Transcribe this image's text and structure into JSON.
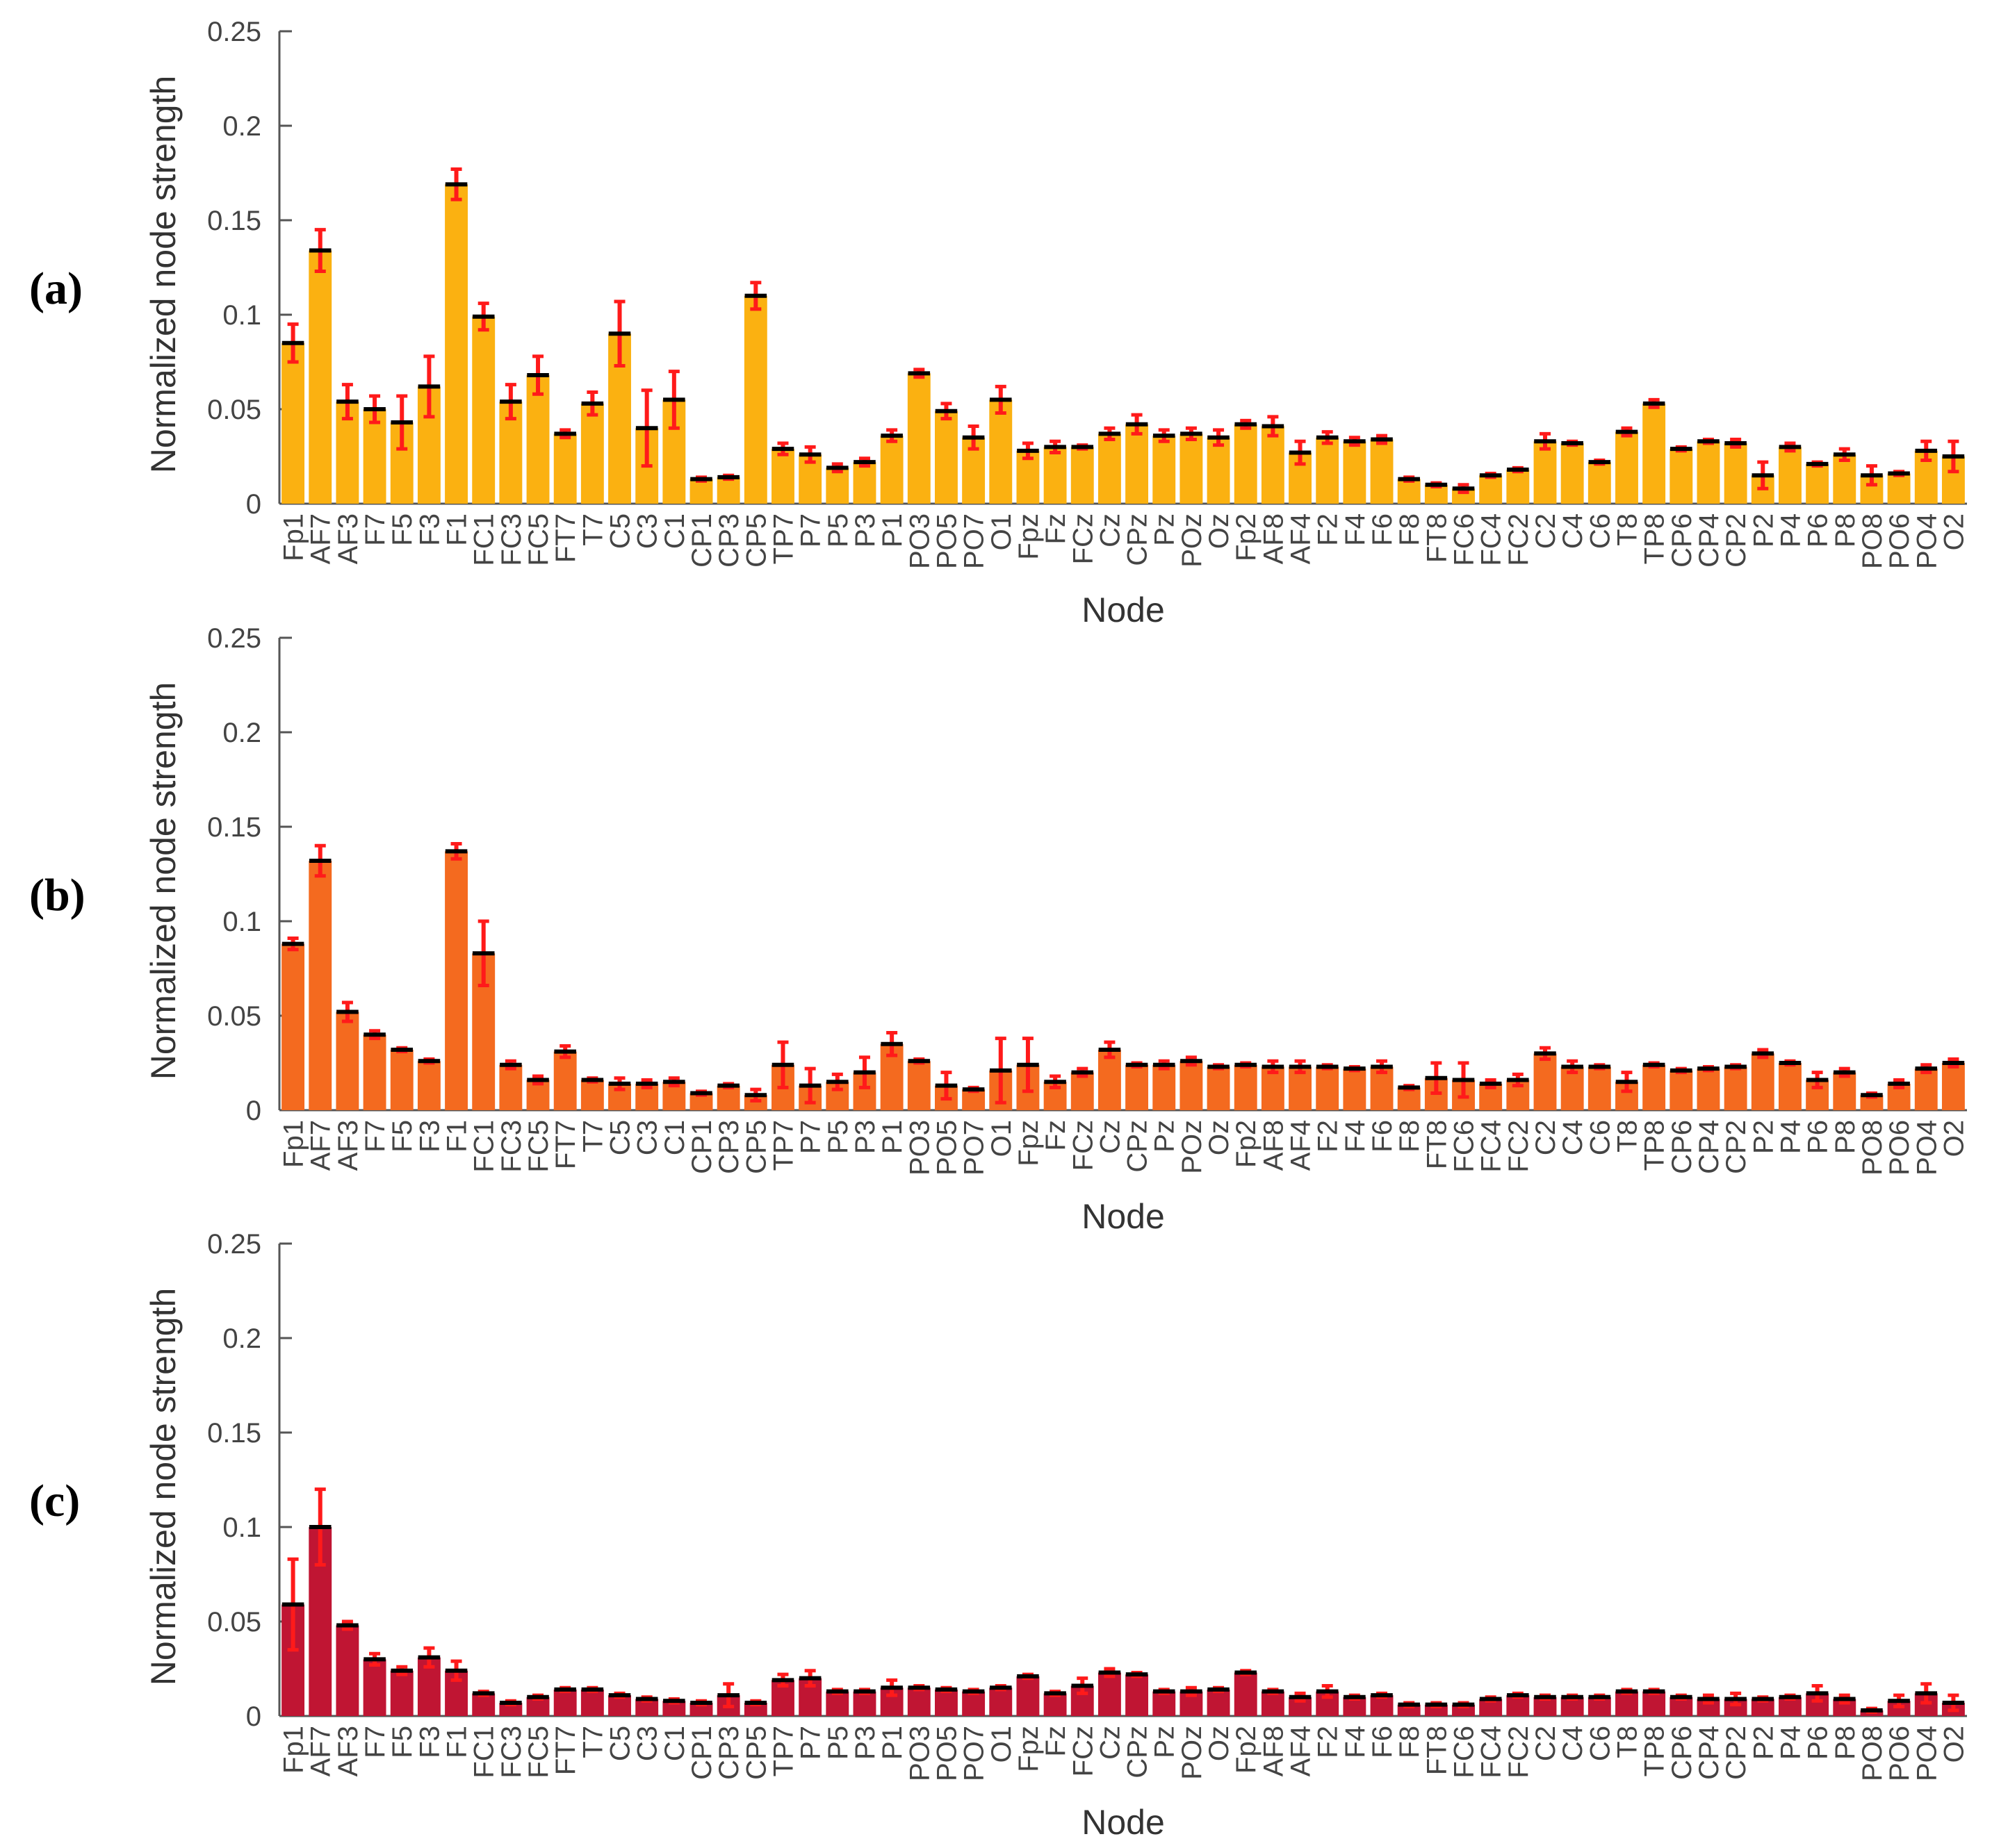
{
  "colors": {
    "panel_a": "#fbb111",
    "panel_b": "#f46a1f",
    "panel_c": "#c01533",
    "error_bar": "#ff1a1a",
    "mean_line": "#000000",
    "axis": "#555555"
  },
  "chart_data": [
    {
      "type": "bar",
      "panel_label": "(a)",
      "xlabel": "Node",
      "ylabel": "Normalized node strength",
      "ylim": [
        0,
        0.25
      ],
      "yticks": [
        0,
        0.05,
        0.1,
        0.15,
        0.2,
        0.25
      ],
      "ytick_labels": [
        "0",
        "0.05",
        "0.1",
        "0.15",
        "0.2",
        "0.25"
      ],
      "grid": false,
      "categories": [
        "Fp1",
        "AF7",
        "AF3",
        "F7",
        "F5",
        "F3",
        "F1",
        "FC1",
        "FC3",
        "FC5",
        "FT7",
        "T7",
        "C5",
        "C3",
        "C1",
        "CP1",
        "CP3",
        "CP5",
        "TP7",
        "P7",
        "P5",
        "P3",
        "P1",
        "PO3",
        "PO5",
        "PO7",
        "O1",
        "Fpz",
        "Fz",
        "FCz",
        "Cz",
        "CPz",
        "Pz",
        "POz",
        "Oz",
        "Fp2",
        "AF8",
        "AF4",
        "F2",
        "F4",
        "F6",
        "F8",
        "FT8",
        "FC6",
        "FC4",
        "FC2",
        "C2",
        "C4",
        "C6",
        "T8",
        "TP8",
        "CP6",
        "CP4",
        "CP2",
        "P2",
        "P4",
        "P6",
        "P8",
        "PO8",
        "PO6",
        "PO4",
        "O2"
      ],
      "values": [
        0.085,
        0.134,
        0.054,
        0.05,
        0.043,
        0.062,
        0.169,
        0.099,
        0.054,
        0.068,
        0.037,
        0.053,
        0.09,
        0.04,
        0.055,
        0.013,
        0.014,
        0.11,
        0.029,
        0.026,
        0.019,
        0.022,
        0.036,
        0.069,
        0.049,
        0.035,
        0.055,
        0.028,
        0.03,
        0.03,
        0.037,
        0.042,
        0.036,
        0.037,
        0.035,
        0.042,
        0.041,
        0.027,
        0.035,
        0.033,
        0.034,
        0.013,
        0.01,
        0.008,
        0.015,
        0.018,
        0.033,
        0.032,
        0.022,
        0.038,
        0.053,
        0.029,
        0.033,
        0.032,
        0.015,
        0.03,
        0.021,
        0.026,
        0.015,
        0.016,
        0.028,
        0.025
      ],
      "errors": [
        0.01,
        0.011,
        0.009,
        0.007,
        0.014,
        0.016,
        0.008,
        0.007,
        0.009,
        0.01,
        0.002,
        0.006,
        0.017,
        0.02,
        0.015,
        0.001,
        0.001,
        0.007,
        0.003,
        0.004,
        0.002,
        0.002,
        0.003,
        0.002,
        0.004,
        0.006,
        0.007,
        0.004,
        0.003,
        0.001,
        0.003,
        0.005,
        0.003,
        0.003,
        0.004,
        0.002,
        0.005,
        0.006,
        0.003,
        0.002,
        0.002,
        0.001,
        0.001,
        0.002,
        0.001,
        0.001,
        0.004,
        0.001,
        0.001,
        0.002,
        0.002,
        0.001,
        0.001,
        0.002,
        0.007,
        0.002,
        0.001,
        0.003,
        0.005,
        0.001,
        0.005,
        0.008
      ]
    },
    {
      "type": "bar",
      "panel_label": "(b)",
      "xlabel": "Node",
      "ylabel": "Normalized node strength",
      "ylim": [
        0,
        0.25
      ],
      "yticks": [
        0,
        0.05,
        0.1,
        0.15,
        0.2,
        0.25
      ],
      "ytick_labels": [
        "0",
        "0.05",
        "0.1",
        "0.15",
        "0.2",
        "0.25"
      ],
      "grid": false,
      "categories": [
        "Fp1",
        "AF7",
        "AF3",
        "F7",
        "F5",
        "F3",
        "F1",
        "FC1",
        "FC3",
        "FC5",
        "FT7",
        "T7",
        "C5",
        "C3",
        "C1",
        "CP1",
        "CP3",
        "CP5",
        "TP7",
        "P7",
        "P5",
        "P3",
        "P1",
        "PO3",
        "PO5",
        "PO7",
        "O1",
        "Fpz",
        "Fz",
        "FCz",
        "Cz",
        "CPz",
        "Pz",
        "POz",
        "Oz",
        "Fp2",
        "AF8",
        "AF4",
        "F2",
        "F4",
        "F6",
        "F8",
        "FT8",
        "FC6",
        "FC4",
        "FC2",
        "C2",
        "C4",
        "C6",
        "T8",
        "TP8",
        "CP6",
        "CP4",
        "CP2",
        "P2",
        "P4",
        "P6",
        "P8",
        "PO8",
        "PO6",
        "PO4",
        "O2"
      ],
      "values": [
        0.088,
        0.132,
        0.052,
        0.04,
        0.032,
        0.026,
        0.137,
        0.083,
        0.024,
        0.016,
        0.031,
        0.016,
        0.014,
        0.014,
        0.015,
        0.009,
        0.013,
        0.008,
        0.024,
        0.013,
        0.015,
        0.02,
        0.035,
        0.026,
        0.013,
        0.011,
        0.021,
        0.024,
        0.015,
        0.02,
        0.032,
        0.024,
        0.024,
        0.026,
        0.023,
        0.024,
        0.023,
        0.023,
        0.023,
        0.022,
        0.023,
        0.012,
        0.017,
        0.016,
        0.014,
        0.016,
        0.03,
        0.023,
        0.023,
        0.015,
        0.024,
        0.021,
        0.022,
        0.023,
        0.03,
        0.025,
        0.016,
        0.02,
        0.008,
        0.014,
        0.022,
        0.025
      ],
      "errors": [
        0.003,
        0.008,
        0.005,
        0.002,
        0.001,
        0.001,
        0.004,
        0.017,
        0.002,
        0.002,
        0.003,
        0.001,
        0.003,
        0.002,
        0.002,
        0.001,
        0.001,
        0.003,
        0.012,
        0.009,
        0.004,
        0.008,
        0.006,
        0.001,
        0.007,
        0.001,
        0.017,
        0.014,
        0.003,
        0.002,
        0.004,
        0.001,
        0.002,
        0.002,
        0.001,
        0.001,
        0.003,
        0.003,
        0.001,
        0.001,
        0.003,
        0.001,
        0.008,
        0.009,
        0.002,
        0.003,
        0.003,
        0.003,
        0.001,
        0.005,
        0.001,
        0.001,
        0.001,
        0.001,
        0.002,
        0.001,
        0.004,
        0.002,
        0.001,
        0.002,
        0.002,
        0.002
      ]
    },
    {
      "type": "bar",
      "panel_label": "(c)",
      "xlabel": "Node",
      "ylabel": "Normalized node strength",
      "ylim": [
        0,
        0.25
      ],
      "yticks": [
        0,
        0.05,
        0.1,
        0.15,
        0.2,
        0.25
      ],
      "ytick_labels": [
        "0",
        "0.05",
        "0.1",
        "0.15",
        "0.2",
        "0.25"
      ],
      "grid": false,
      "categories": [
        "Fp1",
        "AF7",
        "AF3",
        "F7",
        "F5",
        "F3",
        "F1",
        "FC1",
        "FC3",
        "FC5",
        "FT7",
        "T7",
        "C5",
        "C3",
        "C1",
        "CP1",
        "CP3",
        "CP5",
        "TP7",
        "P7",
        "P5",
        "P3",
        "P1",
        "PO3",
        "PO5",
        "PO7",
        "O1",
        "Fpz",
        "Fz",
        "FCz",
        "Cz",
        "CPz",
        "Pz",
        "POz",
        "Oz",
        "Fp2",
        "AF8",
        "AF4",
        "F2",
        "F4",
        "F6",
        "F8",
        "FT8",
        "FC6",
        "FC4",
        "FC2",
        "C2",
        "C4",
        "C6",
        "T8",
        "TP8",
        "CP6",
        "CP4",
        "CP2",
        "P2",
        "P4",
        "P6",
        "P8",
        "PO8",
        "PO6",
        "PO4",
        "O2"
      ],
      "values": [
        0.059,
        0.1,
        0.048,
        0.03,
        0.024,
        0.031,
        0.024,
        0.012,
        0.007,
        0.01,
        0.014,
        0.014,
        0.011,
        0.009,
        0.008,
        0.007,
        0.011,
        0.007,
        0.019,
        0.02,
        0.013,
        0.013,
        0.015,
        0.015,
        0.014,
        0.013,
        0.015,
        0.021,
        0.012,
        0.016,
        0.023,
        0.022,
        0.013,
        0.013,
        0.014,
        0.023,
        0.013,
        0.01,
        0.013,
        0.01,
        0.011,
        0.006,
        0.006,
        0.006,
        0.009,
        0.011,
        0.01,
        0.01,
        0.01,
        0.013,
        0.013,
        0.01,
        0.009,
        0.009,
        0.009,
        0.01,
        0.012,
        0.009,
        0.003,
        0.008,
        0.012,
        0.007
      ],
      "errors": [
        0.024,
        0.02,
        0.002,
        0.003,
        0.002,
        0.005,
        0.005,
        0.001,
        0.001,
        0.001,
        0.001,
        0.001,
        0.001,
        0.001,
        0.001,
        0.001,
        0.006,
        0.001,
        0.003,
        0.004,
        0.001,
        0.001,
        0.004,
        0.001,
        0.001,
        0.001,
        0.001,
        0.001,
        0.001,
        0.004,
        0.002,
        0.001,
        0.001,
        0.002,
        0.001,
        0.001,
        0.001,
        0.002,
        0.003,
        0.001,
        0.001,
        0.001,
        0.001,
        0.001,
        0.001,
        0.001,
        0.001,
        0.001,
        0.001,
        0.001,
        0.001,
        0.001,
        0.002,
        0.003,
        0.001,
        0.001,
        0.004,
        0.002,
        0.001,
        0.003,
        0.005,
        0.004
      ]
    }
  ]
}
